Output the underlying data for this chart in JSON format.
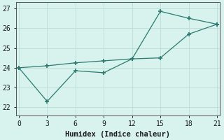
{
  "xlabel": "Humidex (Indice chaleur)",
  "bg_color": "#d8f2ee",
  "grid_color": "#c0deda",
  "line_color": "#2a7a70",
  "x_shared": [
    0,
    3,
    6,
    9,
    12,
    15,
    18,
    21
  ],
  "y_line1": [
    24.0,
    24.1,
    24.25,
    24.35,
    24.45,
    24.5,
    25.7,
    26.2
  ],
  "y_line2": [
    24.0,
    22.3,
    23.85,
    23.75,
    24.45,
    26.85,
    26.5,
    26.2
  ],
  "xlim": [
    -0.3,
    21.3
  ],
  "ylim": [
    21.6,
    27.3
  ],
  "xticks": [
    0,
    3,
    6,
    9,
    12,
    15,
    18,
    21
  ],
  "yticks": [
    22,
    23,
    24,
    25,
    26,
    27
  ],
  "axis_fontsize": 7.5,
  "tick_fontsize": 7
}
